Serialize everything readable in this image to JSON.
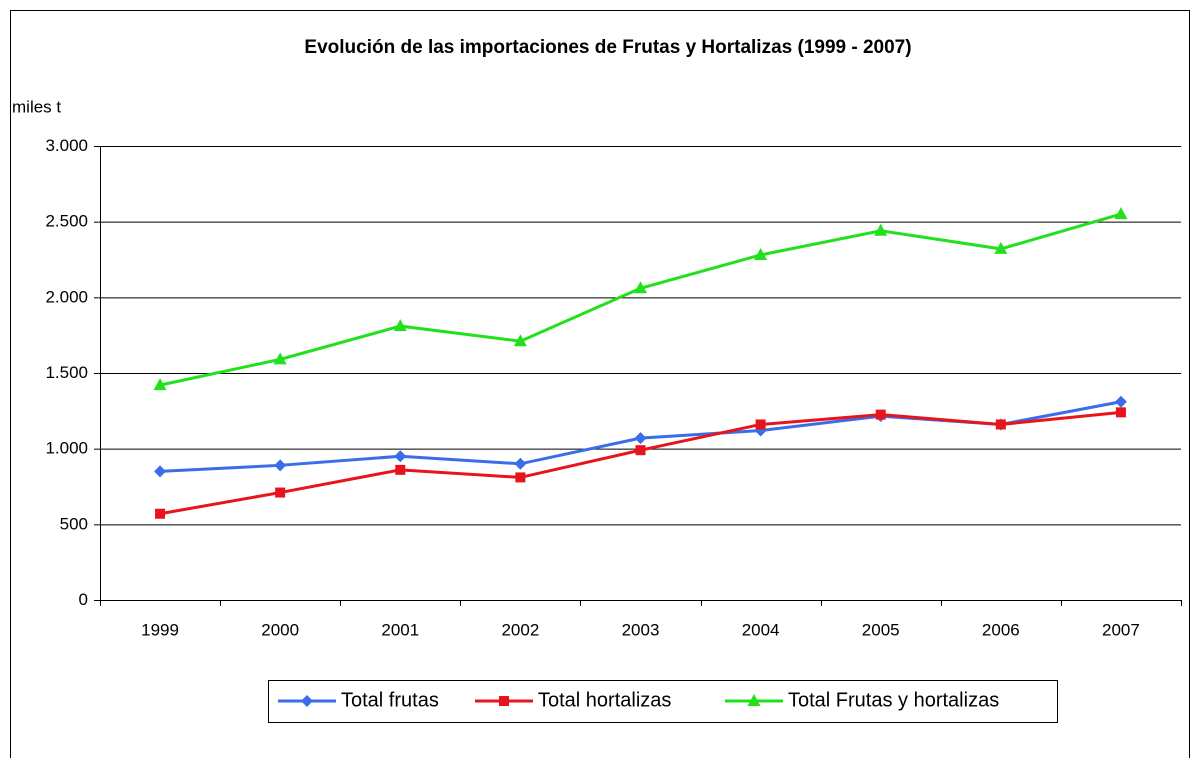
{
  "chart_data": {
    "type": "line",
    "title": "Evolución de las importaciones de Frutas y Hortalizas (1999 - 2007)",
    "y_axis_label": "miles t",
    "categories": [
      "1999",
      "2000",
      "2001",
      "2002",
      "2003",
      "2004",
      "2005",
      "2006",
      "2007"
    ],
    "series": [
      {
        "name": "Total frutas",
        "color": "#3a6ee8",
        "marker": "diamond",
        "values": [
          850,
          890,
          950,
          900,
          1070,
          1120,
          1215,
          1160,
          1310
        ]
      },
      {
        "name": "Total hortalizas",
        "color": "#e8141b",
        "marker": "square",
        "values": [
          570,
          710,
          860,
          810,
          990,
          1160,
          1225,
          1160,
          1240
        ]
      },
      {
        "name": "Total Frutas y hortalizas",
        "color": "#22e01c",
        "marker": "triangle",
        "values": [
          1420,
          1590,
          1810,
          1710,
          2060,
          2280,
          2440,
          2320,
          2550
        ]
      }
    ],
    "ylim": [
      0,
      3000
    ],
    "yticks": [
      0,
      500,
      {
        "value": 1000,
        "label": "1.000"
      },
      {
        "value": 1500,
        "label": "1.500"
      },
      {
        "value": 2000,
        "label": "2.000"
      },
      {
        "value": 2500,
        "label": "2.500"
      },
      {
        "value": 3000,
        "label": "3.000"
      }
    ],
    "grid": true,
    "legend": "bottom"
  }
}
